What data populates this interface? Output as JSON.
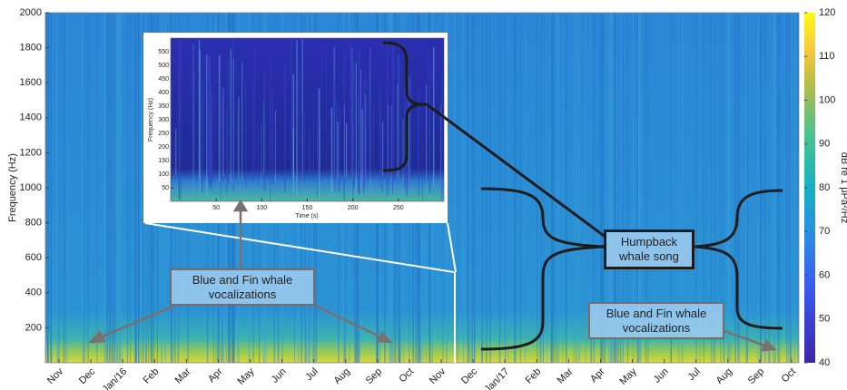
{
  "chart_data": {
    "type": "spectrogram",
    "ylabel": "Frequency (Hz)",
    "ylim": [
      0,
      2000
    ],
    "yticks": [
      200,
      400,
      600,
      800,
      1000,
      1200,
      1400,
      1600,
      1800,
      2000
    ],
    "categories": [
      "Nov",
      "Dec",
      "Jan/16",
      "Feb",
      "Mar",
      "Apr",
      "May",
      "Jun",
      "Jul",
      "Aug",
      "Sep",
      "Oct",
      "Nov",
      "Dec",
      "Jan/17",
      "Feb",
      "Mar",
      "Apr",
      "May",
      "Jun",
      "Jul",
      "Aug",
      "Sep",
      "Oct"
    ],
    "colorbar": {
      "label": "dB re 1 μPa²/Hz",
      "clim": [
        40,
        120
      ],
      "cticks": [
        40,
        50,
        60,
        70,
        80,
        90,
        100,
        110,
        120
      ]
    },
    "inset": {
      "xlabel": "Time (s)",
      "ylabel": "Frequency (Hz)",
      "xlim": [
        0,
        300
      ],
      "xticks": [
        50,
        100,
        150,
        200,
        250
      ],
      "ylim": [
        0,
        600
      ],
      "yticks": [
        50,
        100,
        150,
        200,
        250,
        300,
        350,
        400,
        450,
        500,
        550
      ]
    },
    "annotations": [
      "Humpback whale song",
      "Blue and Fin whale vocalizations",
      "Blue and Fin whale vocalizations"
    ]
  }
}
